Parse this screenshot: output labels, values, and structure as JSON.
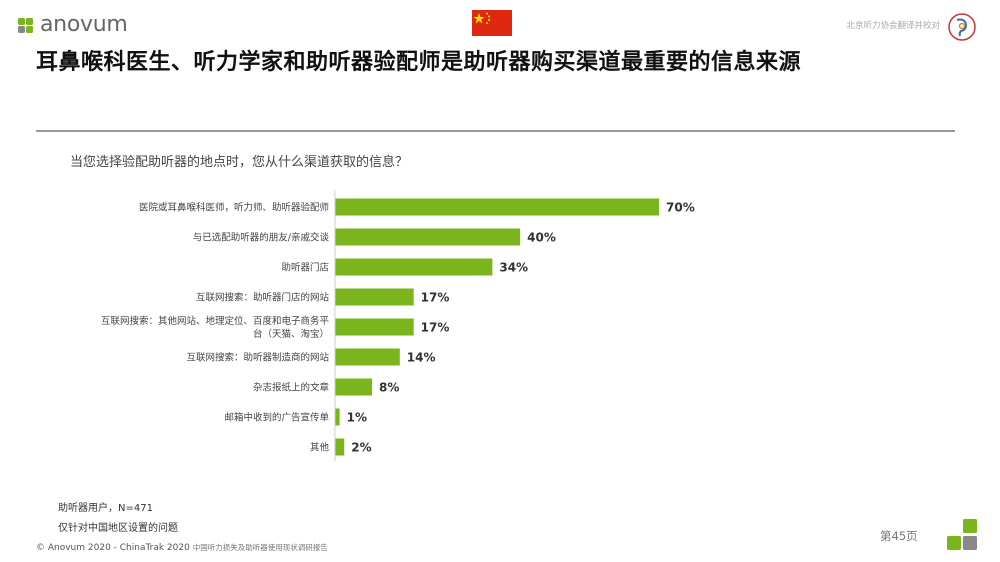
{
  "brand": {
    "name": "anovum",
    "green": "#7ab51d",
    "grey": "#666666"
  },
  "header": {
    "translator_note": "北京听力协会翻译并校对",
    "title": "耳鼻喉科医生、听力学家和助听器验配师是助听器购买渠道最重要的信息来源",
    "flag_icon": "china-flag-icon"
  },
  "question": "当您选择验配助听器的地点时，您从什么渠道获取的信息？",
  "chart_data": {
    "type": "bar",
    "orientation": "horizontal",
    "categories": [
      [
        "医院或耳鼻喉科医师，听力师、助听器验配师"
      ],
      [
        "与已选配助听器的朋友/亲戚交谈"
      ],
      [
        "助听器门店"
      ],
      [
        "互联网搜索：助听器门店的网站"
      ],
      [
        "互联网搜索：其他网站、地理定位、百度和电子商务平",
        "台（天猫、淘宝）"
      ],
      [
        "互联网搜索：助听器制造商的网站"
      ],
      [
        "杂志报纸上的文章"
      ],
      [
        "邮箱中收到的广告宣传单"
      ],
      [
        "其他"
      ]
    ],
    "values": [
      70,
      40,
      34,
      17,
      17,
      14,
      8,
      1,
      2
    ],
    "value_labels": [
      "70%",
      "40%",
      "34%",
      "17%",
      "17%",
      "14%",
      "8%",
      "1%",
      "2%"
    ],
    "unit": "%",
    "bar_color": "#7ab51d",
    "grid": false,
    "legend": "none"
  },
  "footer": {
    "base": "助听器用户，N=471",
    "note": "仅针对中国地区设置的问题",
    "copyright": "© Anovum 2020 - ChinaTrak 2020",
    "copyright_cn": "中国听力损失及助听器使用现状调研报告",
    "page": "第45页"
  }
}
